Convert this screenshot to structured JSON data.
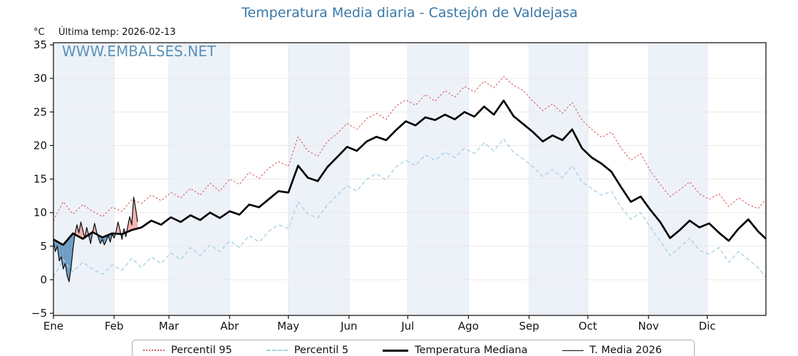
{
  "title": "Temperatura Media diaria - Castejón de Valdejasa",
  "unit_label": "°C",
  "last_temp": "Última temp: 2026-02-13",
  "watermark": "WWW.EMBALSES.NET",
  "colors": {
    "title": "#3878a8",
    "watermark": "#4d8ab5",
    "p95": "#dd5c5c",
    "p5": "#a9d2e6",
    "median": "#000000",
    "t2026": "#0a0a0a",
    "fill_above": "#f4a9a5",
    "fill_below": "#5c90ba",
    "band": "#edf2f9",
    "grid": "#e9e9e9",
    "vgrid": "#e4eaf2",
    "frame": "#1a1a1a",
    "tick": "#111111"
  },
  "chart_data": {
    "type": "line",
    "title": "Temperatura Media diaria - Castejón de Valdejasa",
    "ylabel": "°C",
    "ylim": [
      -5.6,
      35.3
    ],
    "ytick_values": [
      -5,
      0,
      5,
      10,
      15,
      20,
      25,
      30,
      35
    ],
    "ytick_labels": [
      "−5",
      "0",
      "5",
      "10",
      "15",
      "20",
      "25",
      "30",
      "35"
    ],
    "x_months": [
      "Ene",
      "Feb",
      "Mar",
      "Abr",
      "May",
      "Jun",
      "Jul",
      "Ago",
      "Sep",
      "Oct",
      "Nov",
      "Dic"
    ],
    "month_start_days": [
      0,
      31,
      59,
      90,
      120,
      151,
      181,
      212,
      243,
      273,
      304,
      334
    ],
    "days_in_year": 365,
    "grid": true,
    "legend_position": "bottom",
    "series": [
      {
        "name": "Percentil 95",
        "style": "dotted",
        "color_key": "p95",
        "width": 1.1,
        "step_days": 5,
        "values": [
          8.8,
          11.6,
          9.8,
          11.2,
          10.2,
          9.4,
          10.8,
          10.2,
          11.9,
          11.4,
          12.6,
          11.8,
          13.0,
          12.2,
          13.6,
          12.6,
          14.4,
          13.2,
          15.0,
          14.2,
          16.0,
          15.1,
          16.6,
          17.6,
          16.9,
          21.3,
          19.2,
          18.4,
          20.6,
          21.8,
          23.3,
          22.4,
          24.0,
          24.8,
          23.9,
          25.9,
          26.8,
          26.0,
          27.6,
          26.6,
          28.2,
          27.2,
          28.8,
          28.0,
          29.6,
          28.6,
          30.3,
          29.0,
          28.2,
          26.6,
          25.2,
          26.2,
          24.8,
          26.4,
          23.8,
          22.4,
          21.2,
          22.0,
          19.6,
          17.8,
          18.8,
          16.2,
          14.2,
          12.4,
          13.4,
          14.6,
          12.8,
          12.0,
          12.8,
          10.9,
          12.2,
          11.2,
          10.6,
          12.0
        ]
      },
      {
        "name": "Percentil 5",
        "style": "dashed",
        "color_key": "p5",
        "width": 1.4,
        "step_days": 5,
        "values": [
          0.4,
          3.0,
          1.2,
          2.6,
          1.6,
          0.8,
          2.2,
          1.4,
          3.2,
          1.8,
          3.4,
          2.4,
          4.0,
          3.0,
          4.8,
          3.6,
          5.2,
          4.2,
          5.8,
          4.8,
          6.6,
          5.6,
          7.2,
          8.2,
          7.6,
          11.6,
          9.8,
          9.2,
          11.2,
          12.6,
          14.0,
          13.2,
          15.0,
          15.8,
          14.9,
          16.8,
          17.8,
          17.0,
          18.6,
          17.8,
          19.0,
          18.2,
          19.6,
          18.8,
          20.4,
          19.2,
          21.0,
          19.0,
          18.0,
          16.8,
          15.4,
          16.4,
          15.2,
          17.0,
          14.6,
          13.6,
          12.6,
          13.2,
          10.8,
          9.0,
          10.0,
          7.8,
          5.8,
          3.6,
          4.8,
          6.2,
          4.4,
          3.8,
          4.8,
          2.6,
          4.2,
          3.0,
          1.8,
          0.3
        ]
      },
      {
        "name": "Temperatura Mediana",
        "style": "solid",
        "color_key": "median",
        "width": 2.7,
        "step_days": 5,
        "values": [
          6.0,
          5.2,
          6.9,
          6.1,
          7.1,
          6.3,
          6.9,
          6.8,
          7.4,
          7.8,
          8.8,
          8.2,
          9.3,
          8.6,
          9.6,
          8.9,
          10.0,
          9.2,
          10.2,
          9.7,
          11.2,
          10.8,
          12.0,
          13.2,
          13.0,
          17.0,
          15.2,
          14.7,
          16.8,
          18.3,
          19.8,
          19.2,
          20.6,
          21.3,
          20.8,
          22.3,
          23.6,
          23.0,
          24.2,
          23.8,
          24.6,
          23.9,
          25.0,
          24.3,
          25.8,
          24.6,
          26.7,
          24.4,
          23.2,
          22.0,
          20.6,
          21.5,
          20.8,
          22.4,
          19.6,
          18.2,
          17.3,
          16.1,
          13.8,
          11.6,
          12.4,
          10.4,
          8.6,
          6.2,
          7.4,
          8.8,
          7.8,
          8.4,
          7.0,
          5.8,
          7.6,
          9.0,
          7.2,
          6.1
        ]
      },
      {
        "name": "T. Media 2026",
        "style": "solid",
        "color_key": "t2026",
        "width": 1.2,
        "step_days": 1,
        "fill_vs": "Temperatura Mediana",
        "values": [
          5.8,
          4.2,
          5.0,
          2.8,
          3.4,
          1.6,
          2.4,
          0.6,
          -0.3,
          1.8,
          4.6,
          6.8,
          8.2,
          7.0,
          8.6,
          7.4,
          6.2,
          7.8,
          6.6,
          5.4,
          7.0,
          8.4,
          7.2,
          6.2,
          5.4,
          6.0,
          5.2,
          5.8,
          6.6,
          5.6,
          6.8,
          6.2,
          7.2,
          8.6,
          7.4,
          6.0,
          7.6,
          6.4,
          8.0,
          9.4,
          8.2,
          12.3,
          10.6,
          8.6
        ]
      }
    ]
  }
}
